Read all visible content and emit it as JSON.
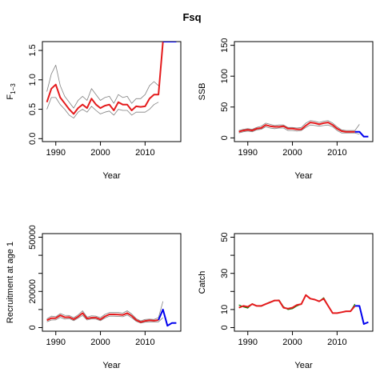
{
  "figure": {
    "title": "Fsq"
  },
  "colors": {
    "estimate": "#e41a1c",
    "interval": "#808080",
    "projection": "#0000ee",
    "observed": "#008000"
  },
  "chart_data": [
    {
      "id": "f",
      "type": "line",
      "title": "",
      "xlabel": "Year",
      "ylabel": "F",
      "ylabel_subscript": "1−3",
      "xlim": [
        1987,
        2018
      ],
      "ylim": [
        -0.05,
        1.65
      ],
      "xticks": [
        1990,
        2000,
        2010
      ],
      "yticks": [
        0.0,
        0.5,
        1.0,
        1.5
      ],
      "ytick_labels": [
        "0.0",
        "0.5",
        "1.0",
        "1.5"
      ],
      "series": [
        {
          "role": "interval",
          "style": "upper",
          "x": [
            1988,
            1989,
            1990,
            1991,
            1992,
            1993,
            1994,
            1995,
            1996,
            1997,
            1998,
            1999,
            2000,
            2001,
            2002,
            2003,
            2004,
            2005,
            2006,
            2007,
            2008,
            2009,
            2010,
            2011,
            2012,
            2013
          ],
          "y": [
            0.8,
            1.1,
            1.25,
            0.9,
            0.72,
            0.62,
            0.52,
            0.65,
            0.72,
            0.65,
            0.85,
            0.75,
            0.65,
            0.7,
            0.72,
            0.6,
            0.75,
            0.7,
            0.72,
            0.6,
            0.68,
            0.68,
            0.75,
            0.9,
            0.97,
            0.9
          ]
        },
        {
          "role": "interval",
          "style": "lower",
          "x": [
            1988,
            1989,
            1990,
            1991,
            1992,
            1993,
            1994,
            1995,
            1996,
            1997,
            1998,
            1999,
            2000,
            2001,
            2002,
            2003,
            2004,
            2005,
            2006,
            2007,
            2008,
            2009,
            2010,
            2011,
            2012,
            2013
          ],
          "y": [
            0.5,
            0.7,
            0.7,
            0.58,
            0.5,
            0.4,
            0.35,
            0.45,
            0.5,
            0.45,
            0.55,
            0.48,
            0.42,
            0.45,
            0.47,
            0.4,
            0.5,
            0.48,
            0.48,
            0.4,
            0.45,
            0.45,
            0.45,
            0.5,
            0.58,
            0.62
          ]
        },
        {
          "role": "estimate",
          "x": [
            1988,
            1989,
            1990,
            1991,
            1992,
            1993,
            1994,
            1995,
            1996,
            1997,
            1998,
            1999,
            2000,
            2001,
            2002,
            2003,
            2004,
            2005,
            2006,
            2007,
            2008,
            2009,
            2010,
            2011,
            2012,
            2013,
            2014
          ],
          "y": [
            0.62,
            0.85,
            0.92,
            0.7,
            0.6,
            0.5,
            0.42,
            0.52,
            0.58,
            0.52,
            0.68,
            0.58,
            0.52,
            0.56,
            0.58,
            0.48,
            0.62,
            0.58,
            0.58,
            0.48,
            0.55,
            0.54,
            0.55,
            0.68,
            0.75,
            0.75,
            1.65
          ]
        },
        {
          "role": "projection",
          "x": [
            2014,
            2015,
            2016,
            2017
          ],
          "y": [
            1.65,
            1.65,
            1.65,
            1.65
          ]
        }
      ]
    },
    {
      "id": "ssb",
      "type": "line",
      "title": "",
      "xlabel": "Year",
      "ylabel": "SSB",
      "xlim": [
        1987,
        2018
      ],
      "ylim": [
        -6,
        156
      ],
      "xticks": [
        1990,
        2000,
        2010
      ],
      "yticks": [
        0,
        50,
        100,
        150
      ],
      "ytick_labels": [
        "0",
        "50",
        "100",
        "150"
      ],
      "series": [
        {
          "role": "interval",
          "style": "upper",
          "x": [
            1988,
            1989,
            1990,
            1991,
            1992,
            1993,
            1994,
            1995,
            1996,
            1997,
            1998,
            1999,
            2000,
            2001,
            2002,
            2003,
            2004,
            2005,
            2006,
            2007,
            2008,
            2009,
            2010,
            2011,
            2012,
            2013,
            2014,
            2015
          ],
          "y": [
            12,
            14,
            15,
            14,
            17,
            19,
            24,
            22,
            20,
            21,
            21,
            17,
            17,
            16,
            17,
            24,
            28,
            27,
            25,
            27,
            28,
            24,
            18,
            13,
            12,
            12,
            12,
            22
          ]
        },
        {
          "role": "interval",
          "style": "lower",
          "x": [
            1988,
            1989,
            1990,
            1991,
            1992,
            1993,
            1994,
            1995,
            1996,
            1997,
            1998,
            1999,
            2000,
            2001,
            2002,
            2003,
            2004,
            2005,
            2006,
            2007,
            2008,
            2009,
            2010,
            2011,
            2012,
            2013,
            2014,
            2015
          ],
          "y": [
            8,
            10,
            11,
            10,
            13,
            14,
            18,
            16,
            15,
            16,
            16,
            12,
            12,
            11,
            12,
            17,
            21,
            20,
            19,
            20,
            21,
            18,
            12,
            8,
            8,
            8,
            8,
            6
          ]
        },
        {
          "role": "estimate",
          "x": [
            1988,
            1989,
            1990,
            1991,
            1992,
            1993,
            1994,
            1995,
            1996,
            1997,
            1998,
            1999,
            2000,
            2001,
            2002,
            2003,
            2004,
            2005,
            2006,
            2007,
            2008,
            2009,
            2010,
            2011,
            2012,
            2013,
            2014
          ],
          "y": [
            10,
            12,
            13,
            12,
            15,
            16,
            21,
            19,
            18,
            18,
            19,
            15,
            15,
            14,
            14,
            20,
            25,
            24,
            22,
            24,
            25,
            21,
            15,
            11,
            10,
            10,
            10
          ]
        },
        {
          "role": "projection",
          "x": [
            2014,
            2015,
            2016,
            2017
          ],
          "y": [
            10,
            10,
            2,
            2
          ]
        }
      ]
    },
    {
      "id": "recruitment",
      "type": "line",
      "title": "",
      "xlabel": "Year",
      "ylabel": "Recruitment at age 1",
      "xlim": [
        1987,
        2018
      ],
      "ylim": [
        -2000,
        52000
      ],
      "xticks": [
        1990,
        2000,
        2010
      ],
      "yticks": [
        0,
        10000,
        20000,
        30000,
        40000,
        50000
      ],
      "ytick_labels": [
        "0",
        "",
        "20000",
        "",
        "",
        "50000"
      ],
      "series": [
        {
          "role": "interval",
          "style": "upper",
          "x": [
            1988,
            1989,
            1990,
            1991,
            1992,
            1993,
            1994,
            1995,
            1996,
            1997,
            1998,
            1999,
            2000,
            2001,
            2002,
            2003,
            2004,
            2005,
            2006,
            2007,
            2008,
            2009,
            2010,
            2011,
            2012,
            2013,
            2014
          ],
          "y": [
            4800,
            6300,
            6000,
            7800,
            6800,
            6700,
            5500,
            7000,
            9300,
            5800,
            6500,
            6300,
            5500,
            7300,
            8300,
            8300,
            8300,
            8000,
            9300,
            7500,
            5000,
            3700,
            4500,
            4700,
            4500,
            5500,
            14500
          ]
        },
        {
          "role": "interval",
          "style": "lower",
          "x": [
            1988,
            1989,
            1990,
            1991,
            1992,
            1993,
            1994,
            1995,
            1996,
            1997,
            1998,
            1999,
            2000,
            2001,
            2002,
            2003,
            2004,
            2005,
            2006,
            2007,
            2008,
            2009,
            2010,
            2011,
            2012,
            2013,
            2014
          ],
          "y": [
            3200,
            4200,
            4300,
            5700,
            4700,
            5000,
            3800,
            5200,
            6700,
            4200,
            4800,
            4700,
            3800,
            5300,
            6300,
            6300,
            6200,
            6000,
            7000,
            5500,
            3500,
            2500,
            3000,
            3200,
            3200,
            3200,
            5500
          ]
        },
        {
          "role": "estimate",
          "x": [
            1988,
            1989,
            1990,
            1991,
            1992,
            1993,
            1994,
            1995,
            1996,
            1997,
            1998,
            1999,
            2000,
            2001,
            2002,
            2003,
            2004,
            2005,
            2006,
            2007,
            2008,
            2009,
            2010,
            2011,
            2012,
            2013
          ],
          "y": [
            4000,
            5200,
            5200,
            6800,
            5700,
            5800,
            4600,
            6000,
            8000,
            5000,
            5500,
            5500,
            4500,
            6200,
            7300,
            7300,
            7200,
            7000,
            8000,
            6500,
            4200,
            3000,
            3700,
            4000,
            3800,
            4200
          ]
        },
        {
          "role": "projection",
          "x": [
            2013,
            2014,
            2015,
            2016,
            2017
          ],
          "y": [
            4200,
            10000,
            1000,
            2500,
            2500
          ]
        }
      ]
    },
    {
      "id": "catch",
      "type": "line",
      "title": "",
      "xlabel": "Year",
      "ylabel": "Catch",
      "xlim": [
        1987,
        2018
      ],
      "ylim": [
        -2,
        52
      ],
      "xticks": [
        1990,
        2000,
        2010
      ],
      "yticks": [
        0,
        10,
        20,
        30,
        40,
        50
      ],
      "ytick_labels": [
        "0",
        "10",
        "",
        "30",
        "",
        "50"
      ],
      "series": [
        {
          "role": "observed",
          "x": [
            1988,
            1989,
            1990,
            1991,
            1992,
            1993,
            1994,
            1995,
            1996,
            1997,
            1998,
            1999,
            2000,
            2001,
            2002,
            2003,
            2004,
            2005,
            2006,
            2007,
            2008,
            2009,
            2010,
            2011,
            2012,
            2013,
            2014
          ],
          "y": [
            12.5,
            11.5,
            10.8,
            13.2,
            12.0,
            11.8,
            13.0,
            14.2,
            14.8,
            15.2,
            11.5,
            10.0,
            10.5,
            12.0,
            13.0,
            18.0,
            16.0,
            15.5,
            14.5,
            16.5,
            12.0,
            8.0,
            8.0,
            8.5,
            9.0,
            9.0,
            13.0
          ]
        },
        {
          "role": "estimate",
          "x": [
            1988,
            1989,
            1990,
            1991,
            1992,
            1993,
            1994,
            1995,
            1996,
            1997,
            1998,
            1999,
            2000,
            2001,
            2002,
            2003,
            2004,
            2005,
            2006,
            2007,
            2008,
            2009,
            2010,
            2011,
            2012,
            2013,
            2014
          ],
          "y": [
            11.0,
            12.0,
            11.5,
            13.0,
            12.0,
            12.0,
            13.0,
            14.0,
            15.0,
            15.0,
            11.0,
            10.5,
            11.0,
            12.5,
            13.0,
            18.0,
            16.0,
            15.5,
            14.5,
            16.0,
            12.0,
            8.0,
            8.0,
            8.5,
            9.0,
            9.0,
            12.0
          ]
        },
        {
          "role": "projection",
          "x": [
            2014,
            2015,
            2016,
            2017
          ],
          "y": [
            12.0,
            12.0,
            2.0,
            3.0
          ]
        }
      ]
    }
  ]
}
